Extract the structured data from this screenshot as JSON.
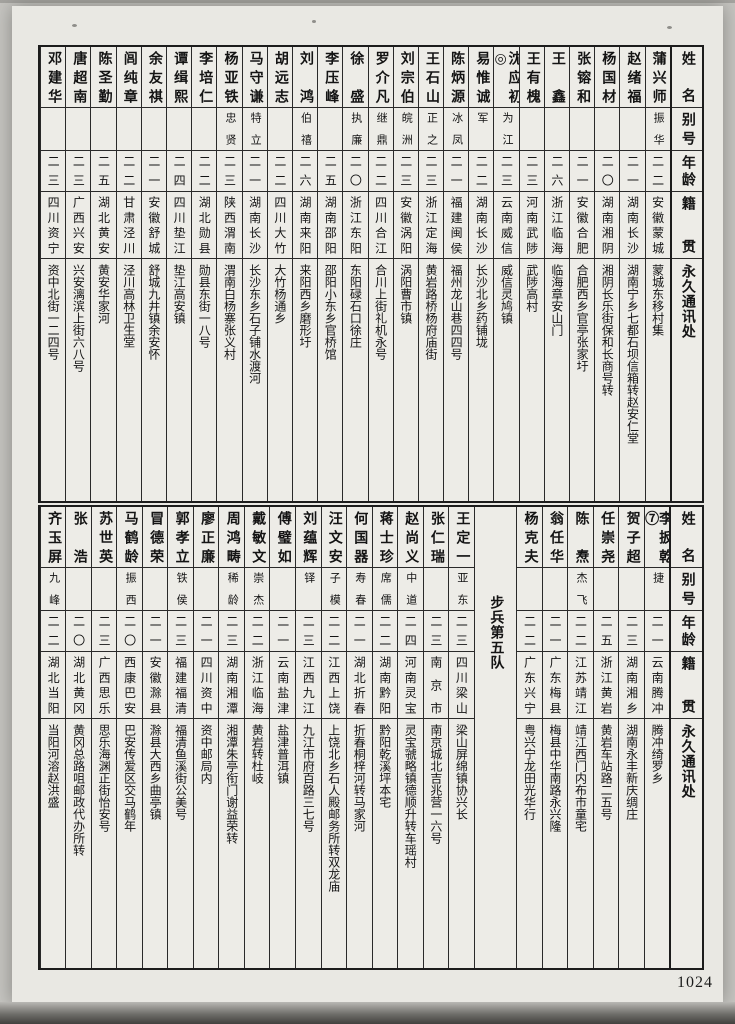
{
  "page": {
    "number": "1024"
  },
  "colors": {
    "ink": "#141414",
    "paper": "#e9e8e3",
    "margin": "#c6c5c1",
    "line": "#2a2a2a"
  },
  "headers": {
    "name": "姓名",
    "alias": "别号",
    "age": "年龄",
    "native": "籍贯",
    "address": "永久通讯处"
  },
  "tables": [
    {
      "columns": [
        {
          "name": "蒲兴师",
          "alias": "振华",
          "age": "二二",
          "native": "安徽蒙城",
          "address": "蒙城东移村集"
        },
        {
          "name": "赵绪福",
          "alias": "",
          "age": "二一",
          "native": "湖南长沙",
          "address": "湖南宁乡七都石坝信箱转赵安仁堂"
        },
        {
          "name": "杨国材",
          "alias": "",
          "age": "二〇",
          "native": "湖南湘阴",
          "address": "湘阴长乐街保和长商号转"
        },
        {
          "name": "张镕和",
          "alias": "",
          "age": "二一",
          "native": "安徽合肥",
          "address": "合肥西乡官亭张家圩"
        },
        {
          "name": "王鑫",
          "alias": "",
          "age": "二六",
          "native": "浙江临海",
          "address": "临海章安山门"
        },
        {
          "name": "王有槐",
          "alias": "",
          "age": "二三",
          "native": "河南武陟",
          "address": "武陟高村"
        },
        {
          "name": "沈应初◎",
          "alias": "为江",
          "age": "二三",
          "native": "云南威信",
          "address": "威信灵鸠镇"
        },
        {
          "name": "易惟诚",
          "alias": "军",
          "age": "二二",
          "native": "湖南长沙",
          "address": "长沙北乡药铺垅"
        },
        {
          "name": "陈炳源",
          "alias": "冰凤",
          "age": "二一",
          "native": "福建闽侯",
          "address": "福州龙山巷四四号"
        },
        {
          "name": "王石山",
          "alias": "正之",
          "age": "二三",
          "native": "浙江定海",
          "address": "黄岩路桥杨府庙街"
        },
        {
          "name": "刘宗伯",
          "alias": "皖洲",
          "age": "二三",
          "native": "安徽涡阳",
          "address": "涡阳曹市镇"
        },
        {
          "name": "罗介凡",
          "alias": "继鼎",
          "age": "二二",
          "native": "四川合江",
          "address": "合川上街礼机永号"
        },
        {
          "name": "徐盛",
          "alias": "执廉",
          "age": "二〇",
          "native": "浙江东阳",
          "address": "东阳碌石口徐庄"
        },
        {
          "name": "李压峰",
          "alias": "",
          "age": "二五",
          "native": "湖南邵阳",
          "address": "邵阳小东乡官桥馆"
        },
        {
          "name": "刘鸿",
          "alias": "伯禧",
          "age": "二六",
          "native": "湖南来阳",
          "address": "来阳西乡磨形圩"
        },
        {
          "name": "胡远志",
          "alias": "",
          "age": "二二",
          "native": "四川大竹",
          "address": "大竹杨通乡"
        },
        {
          "name": "马守谦",
          "alias": "特立",
          "age": "二一",
          "native": "湖南长沙",
          "address": "长沙东乡石子铺水渡河"
        },
        {
          "name": "杨亚铁",
          "alias": "忠贤",
          "age": "二三",
          "native": "陕西渭南",
          "address": "渭南白杨寨张义村"
        },
        {
          "name": "李培仁",
          "alias": "",
          "age": "二二",
          "native": "湖北勋县",
          "address": "勋县东街一八号"
        },
        {
          "name": "谭缉熙",
          "alias": "",
          "age": "二四",
          "native": "四川垫江",
          "address": "垫江高安镇"
        },
        {
          "name": "余友祺",
          "alias": "",
          "age": "二一",
          "native": "安徽舒城",
          "address": "舒城九井镇余安怀"
        },
        {
          "name": "闾纯章",
          "alias": "",
          "age": "二二",
          "native": "甘肃泾川",
          "address": "泾川高林卫生堂"
        },
        {
          "name": "陈圣勤",
          "alias": "",
          "age": "二五",
          "native": "湖北黄安",
          "address": "黄安华家河"
        },
        {
          "name": "唐超南",
          "alias": "",
          "age": "二三",
          "native": "广西兴安",
          "address": "兴安漓滨上街六八号"
        },
        {
          "name": "邓建华",
          "alias": "",
          "age": "二三",
          "native": "四川资宁",
          "address": "资中北街一二四号"
        }
      ]
    },
    {
      "columns": [
        {
          "name": "李扳乾⑦",
          "alias": "捷",
          "age": "二一",
          "native": "云南腾冲",
          "address": "腾冲绮罗乡"
        },
        {
          "name": "贺子超",
          "alias": "",
          "age": "二三",
          "native": "湖南湘乡",
          "address": "湖南永丰新庆绸庄"
        },
        {
          "name": "任崇尧",
          "alias": "",
          "age": "二五",
          "native": "浙江黄岩",
          "address": "黄岩车站路二五号"
        },
        {
          "name": "陈焘",
          "alias": "杰飞",
          "age": "二二",
          "native": "江苏靖江",
          "address": "靖江西门内布市童宅"
        },
        {
          "name": "翁任华",
          "alias": "",
          "age": "二一",
          "native": "广东梅县",
          "address": "梅县中华南路永兴隆"
        },
        {
          "name": "杨克夫",
          "alias": "",
          "age": "二二",
          "native": "广东兴宁",
          "address": "粤兴宁龙田光华行"
        },
        {
          "section": "步兵第五队"
        },
        {
          "name": "王定一",
          "alias": "亚东",
          "age": "二三",
          "native": "四川梁山",
          "address": "梁山屏绵镇协兴长"
        },
        {
          "name": "张仁瑞",
          "alias": "",
          "age": "二三",
          "native": "南京市",
          "address": "南京城北吉兆营一六号"
        },
        {
          "name": "赵尚义",
          "alias": "中道",
          "age": "二四",
          "native": "河南灵宝",
          "address": "灵宝虢略镇德顺升转车瑶村"
        },
        {
          "name": "蒋士珍",
          "alias": "席儒",
          "age": "二二",
          "native": "湖南黔阳",
          "address": "黔阳乾溪坪本宅"
        },
        {
          "name": "何国器",
          "alias": "寿春",
          "age": "二一",
          "native": "湖北折春",
          "address": "折春桐梓河转马家河"
        },
        {
          "name": "汪文安",
          "alias": "子模",
          "age": "二二",
          "native": "江西上饶",
          "address": "上饶北乡石人殿邮务所转双龙庙"
        },
        {
          "name": "刘蕴辉",
          "alias": "铎",
          "age": "二三",
          "native": "江西九江",
          "address": "九江市府百路三七号"
        },
        {
          "name": "傅璧如",
          "alias": "",
          "age": "二一",
          "native": "云南盐津",
          "address": "盐津普洱镇"
        },
        {
          "name": "戴敏文",
          "alias": "崇杰",
          "age": "二二",
          "native": "浙江临海",
          "address": "黄岩转杜岐"
        },
        {
          "name": "周鸿畴",
          "alias": "稀龄",
          "age": "二三",
          "native": "湖南湘潭",
          "address": "湘潭朱亭衔门谢益荣转"
        },
        {
          "name": "廖正廉",
          "alias": "",
          "age": "二一",
          "native": "四川资中",
          "address": "资中邮局内"
        },
        {
          "name": "郭孝立",
          "alias": "铁侯",
          "age": "二三",
          "native": "福建福清",
          "address": "福清鱼溪街公美号"
        },
        {
          "name": "冒德荣",
          "alias": "",
          "age": "二一",
          "native": "安徽滁县",
          "address": "滁县大西乡曲亭镇"
        },
        {
          "name": "马鹤龄",
          "alias": "振西",
          "age": "二〇",
          "native": "西康巴安",
          "address": "巴安传爱区交马鹤年"
        },
        {
          "name": "苏世英",
          "alias": "",
          "age": "二三",
          "native": "广西思乐",
          "address": "思乐海渊正街怡安号"
        },
        {
          "name": "张浩",
          "alias": "",
          "age": "二〇",
          "native": "湖北黄冈",
          "address": "黄冈总路咀邮政代办所转"
        },
        {
          "name": "齐玉屏",
          "alias": "九峰",
          "age": "二二",
          "native": "湖北当阳",
          "address": "当阳河溶赵洪盛"
        }
      ]
    }
  ]
}
